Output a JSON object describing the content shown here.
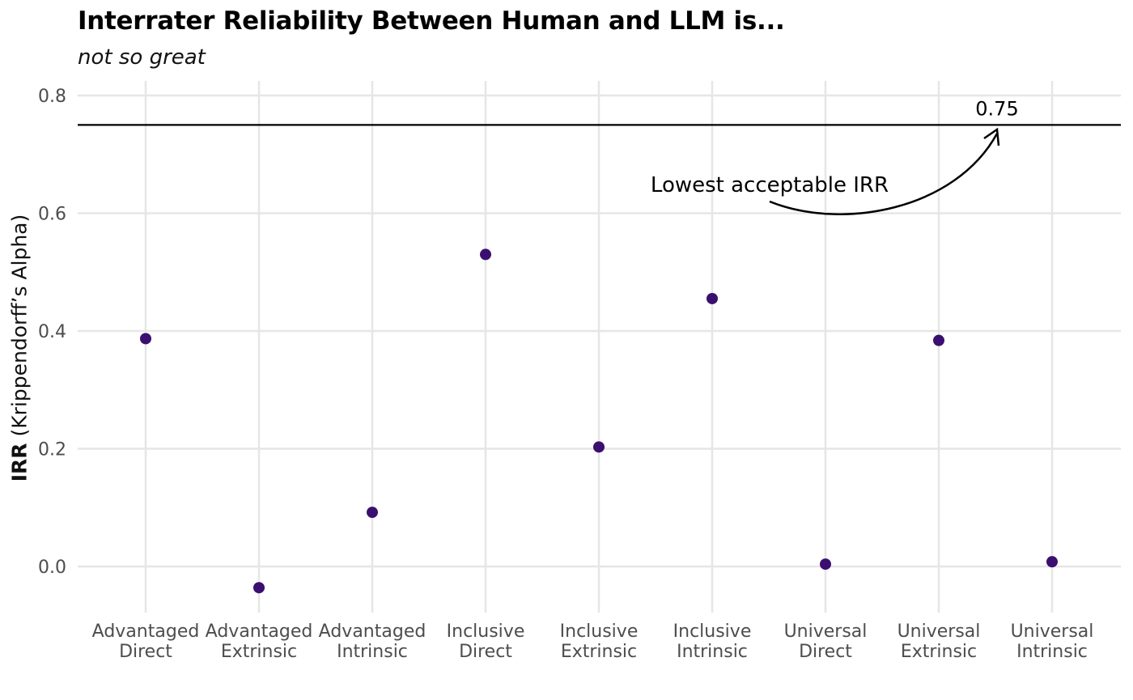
{
  "chart_data": {
    "type": "scatter",
    "title": "Interrater Reliability Between Human and LLM is...",
    "subtitle": "not so great",
    "ylabel_bold": "IRR",
    "ylabel_rest": " (Krippendorff’s Alpha)",
    "xlabel": "",
    "categories": [
      [
        "Advantaged",
        "Direct"
      ],
      [
        "Advantaged",
        "Extrinsic"
      ],
      [
        "Advantaged",
        "Intrinsic"
      ],
      [
        "Inclusive",
        "Direct"
      ],
      [
        "Inclusive",
        "Extrinsic"
      ],
      [
        "Inclusive",
        "Intrinsic"
      ],
      [
        "Universal",
        "Direct"
      ],
      [
        "Universal",
        "Extrinsic"
      ],
      [
        "Universal",
        "Intrinsic"
      ]
    ],
    "values": [
      0.387,
      -0.036,
      0.092,
      0.53,
      0.203,
      0.455,
      0.004,
      0.384,
      0.008
    ],
    "point_color": "#3b0f70",
    "ylim": [
      -0.07,
      0.83
    ],
    "yticks": [
      "0.0",
      "0.2",
      "0.4",
      "0.6",
      "0.8"
    ],
    "ytick_values": [
      0.0,
      0.2,
      0.4,
      0.6,
      0.8
    ],
    "grid": true,
    "reference_line": {
      "value": 0.75,
      "label": "0.75"
    },
    "annotation": {
      "text": "Lowest acceptable IRR"
    }
  }
}
